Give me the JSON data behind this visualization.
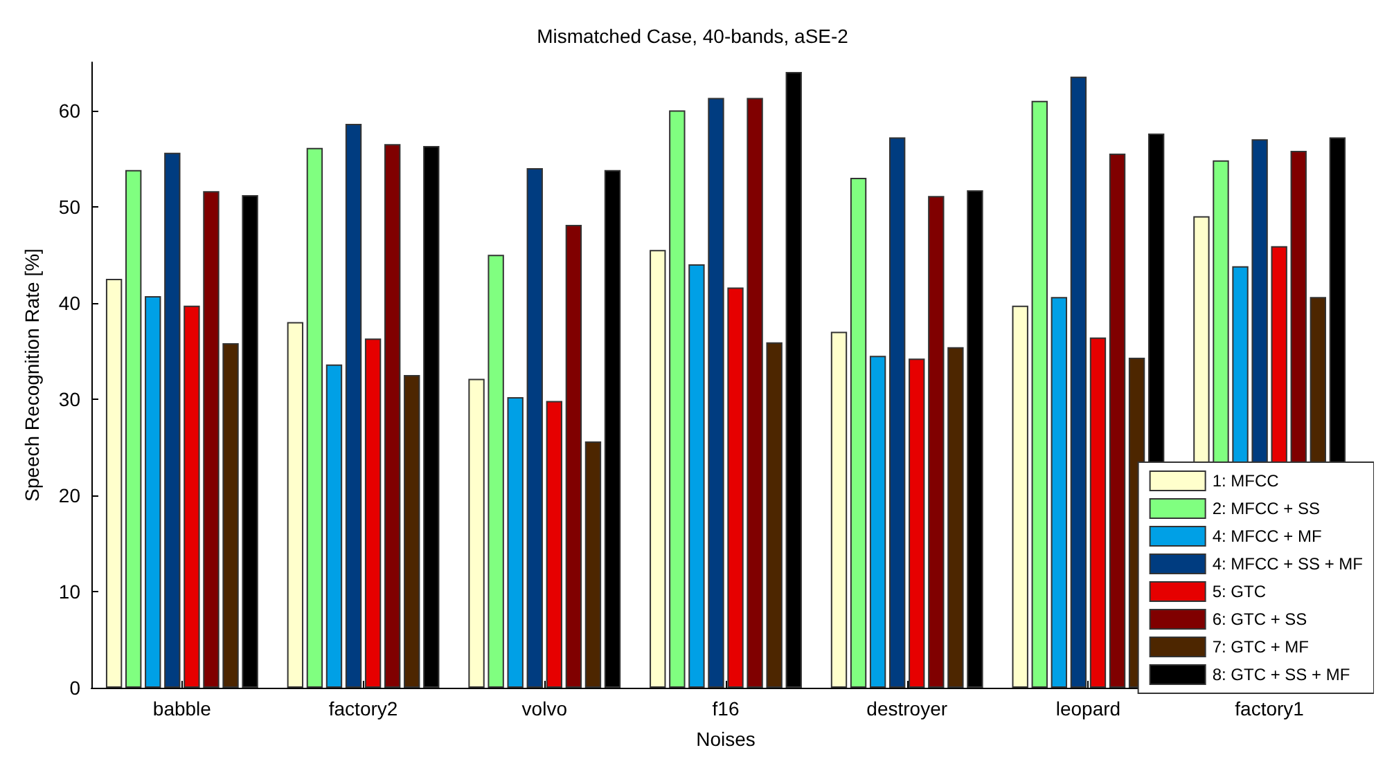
{
  "chart_data": {
    "type": "bar",
    "title": "Mismatched Case, 40-bands, aSE-2",
    "xlabel": "Noises",
    "ylabel": "Speech Recognition Rate [%]",
    "categories": [
      "babble",
      "factory2",
      "volvo",
      "f16",
      "destroyer",
      "leopard",
      "factory1"
    ],
    "series": [
      {
        "name": "1: MFCC",
        "color": "#ffffcc",
        "values": [
          42.5,
          38,
          32.1,
          45.5,
          37,
          39.7,
          49
        ]
      },
      {
        "name": "2: MFCC + SS",
        "color": "#80ff80",
        "values": [
          53.8,
          56.1,
          45,
          60,
          53,
          61,
          54.8
        ]
      },
      {
        "name": "4: MFCC + MF",
        "color": "#00a0e6",
        "values": [
          40.7,
          33.6,
          30.2,
          44,
          34.5,
          40.6,
          43.8
        ]
      },
      {
        "name": "4: MFCC + SS + MF",
        "color": "#003c80",
        "values": [
          55.6,
          58.6,
          54,
          61.3,
          57.2,
          63.5,
          57
        ]
      },
      {
        "name": "5: GTC",
        "color": "#e60000",
        "values": [
          39.7,
          36.3,
          29.8,
          41.6,
          34.2,
          36.4,
          45.9
        ]
      },
      {
        "name": "6: GTC + SS",
        "color": "#800000",
        "values": [
          51.6,
          56.5,
          48.1,
          61.3,
          51.1,
          55.5,
          55.8
        ]
      },
      {
        "name": "7: GTC + MF",
        "color": "#4d2600",
        "values": [
          35.8,
          32.5,
          25.6,
          35.9,
          35.4,
          34.3,
          40.6
        ]
      },
      {
        "name": "8: GTC + SS + MF",
        "color": "#000000",
        "values": [
          51.2,
          56.3,
          53.8,
          64,
          51.7,
          57.6,
          57.2
        ]
      }
    ],
    "ylim": [
      0,
      65
    ],
    "yticks": [
      0,
      10,
      20,
      30,
      40,
      50,
      60
    ],
    "grid": false,
    "legend": "bottom right"
  }
}
